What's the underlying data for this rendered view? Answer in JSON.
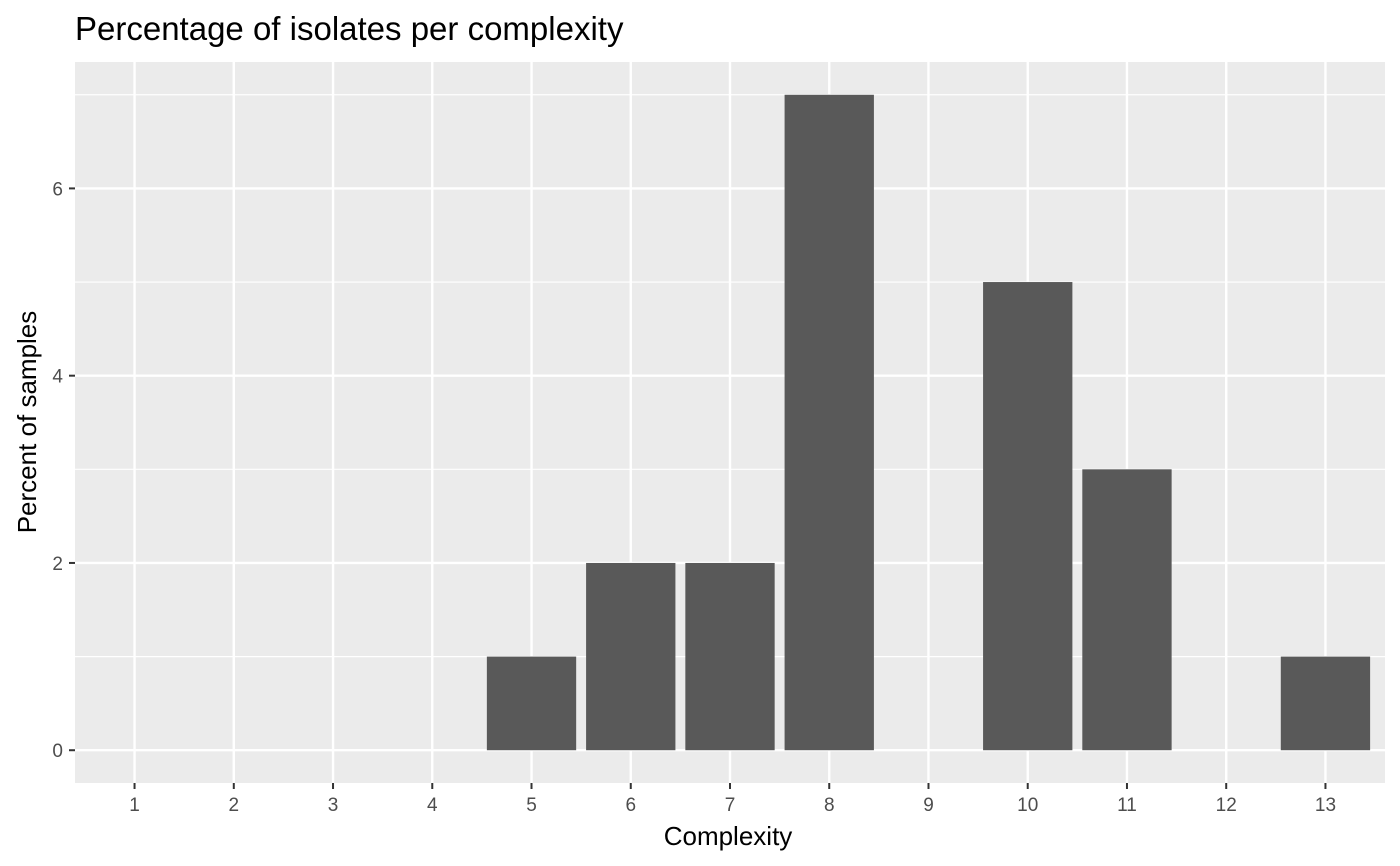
{
  "chart_data": {
    "type": "bar",
    "title": "Percentage of isolates per complexity",
    "xlabel": "Complexity",
    "ylabel": "Percent of samples",
    "categories": [
      "1",
      "2",
      "3",
      "4",
      "5",
      "6",
      "7",
      "8",
      "9",
      "10",
      "11",
      "12",
      "13"
    ],
    "values": [
      0,
      0,
      0,
      0,
      1,
      2,
      2,
      7,
      0,
      5,
      3,
      0,
      1
    ],
    "ylim": [
      -0.35,
      7.35
    ],
    "yticks": [
      0,
      2,
      4,
      6
    ],
    "grid": true,
    "legend": "none",
    "colors": {
      "bar": "#595959",
      "panel": "#ebebeb",
      "grid": "#ffffff",
      "tick_text": "#4d4d4d"
    }
  }
}
